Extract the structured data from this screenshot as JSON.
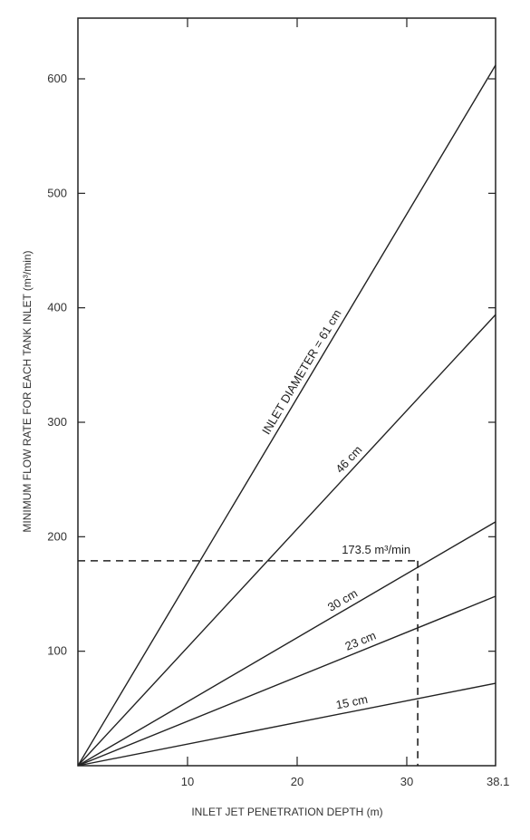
{
  "chart_data": {
    "type": "line",
    "xlabel": "INLET JET PENETRATION DEPTH (m)",
    "ylabel": "MINIMUM FLOW RATE FOR EACH TANK INLET (m³/min)",
    "xlim": [
      0,
      38.1
    ],
    "ylim": [
      0,
      600
    ],
    "x_ticks": [
      10,
      20,
      30,
      38.1
    ],
    "x_tick_labels": [
      "10",
      "20",
      "30",
      "38.1"
    ],
    "y_ticks": [
      100,
      200,
      300,
      400,
      500,
      600
    ],
    "y_tick_labels": [
      "100",
      "200",
      "300",
      "400",
      "500",
      "600"
    ],
    "grid": false,
    "series": [
      {
        "name": "INLET DIAMETER = 61 cm",
        "x": [
          0,
          38.1
        ],
        "y": [
          0,
          612
        ]
      },
      {
        "name": "46 cm",
        "x": [
          0,
          38.1
        ],
        "y": [
          0,
          394
        ]
      },
      {
        "name": "30 cm",
        "x": [
          0,
          38.1
        ],
        "y": [
          0,
          213
        ]
      },
      {
        "name": "23 cm",
        "x": [
          0,
          38.1
        ],
        "y": [
          0,
          148
        ]
      },
      {
        "name": "15 cm",
        "x": [
          0,
          38.1
        ],
        "y": [
          0,
          72
        ]
      }
    ],
    "annotation": {
      "text": "173.5 m³/min",
      "x": 31,
      "y": 179
    }
  }
}
